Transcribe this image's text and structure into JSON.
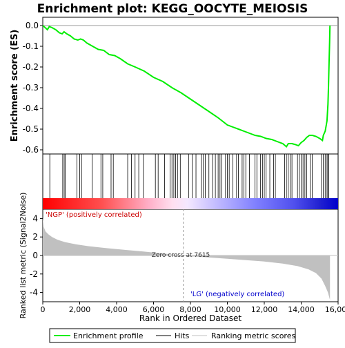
{
  "chart_data": {
    "type": "line",
    "title": "Enrichment plot: KEGG_OOCYTE_MEIOSIS",
    "colors": {
      "enrichment_line": "#00ee00",
      "hit_line": "#000000",
      "metric_fill": "#c0c0c0",
      "zero_line": "#000000",
      "positive_end": "#ff0000",
      "negative_end": "#0000ff"
    },
    "es_panel": {
      "ylabel": "Enrichment score (ES)",
      "ylim": [
        -0.62,
        0.04
      ],
      "yticks": [
        0.0,
        -0.1,
        -0.2,
        -0.3,
        -0.4,
        -0.5,
        -0.6
      ],
      "ytick_labels": [
        "0.0",
        "-0.1",
        "-0.2",
        "-0.3",
        "-0.4",
        "-0.5",
        "-0.6"
      ],
      "points": [
        [
          0,
          0.0
        ],
        [
          130,
          -0.01
        ],
        [
          250,
          -0.02
        ],
        [
          350,
          -0.005
        ],
        [
          500,
          -0.01
        ],
        [
          700,
          -0.02
        ],
        [
          900,
          -0.035
        ],
        [
          1050,
          -0.04
        ],
        [
          1150,
          -0.03
        ],
        [
          1300,
          -0.04
        ],
        [
          1500,
          -0.05
        ],
        [
          1700,
          -0.065
        ],
        [
          1900,
          -0.07
        ],
        [
          2050,
          -0.065
        ],
        [
          2200,
          -0.07
        ],
        [
          2400,
          -0.085
        ],
        [
          2700,
          -0.1
        ],
        [
          3000,
          -0.115
        ],
        [
          3300,
          -0.12
        ],
        [
          3600,
          -0.14
        ],
        [
          3900,
          -0.145
        ],
        [
          4200,
          -0.16
        ],
        [
          4600,
          -0.185
        ],
        [
          5000,
          -0.2
        ],
        [
          5500,
          -0.22
        ],
        [
          6000,
          -0.25
        ],
        [
          6500,
          -0.27
        ],
        [
          7000,
          -0.3
        ],
        [
          7500,
          -0.325
        ],
        [
          8000,
          -0.355
        ],
        [
          8500,
          -0.385
        ],
        [
          9000,
          -0.415
        ],
        [
          9500,
          -0.445
        ],
        [
          10000,
          -0.48
        ],
        [
          10300,
          -0.49
        ],
        [
          10600,
          -0.5
        ],
        [
          10900,
          -0.51
        ],
        [
          11200,
          -0.52
        ],
        [
          11500,
          -0.53
        ],
        [
          11800,
          -0.535
        ],
        [
          12100,
          -0.545
        ],
        [
          12400,
          -0.55
        ],
        [
          12700,
          -0.56
        ],
        [
          13000,
          -0.57
        ],
        [
          13200,
          -0.585
        ],
        [
          13300,
          -0.57
        ],
        [
          13500,
          -0.57
        ],
        [
          13700,
          -0.575
        ],
        [
          13850,
          -0.58
        ],
        [
          14000,
          -0.565
        ],
        [
          14150,
          -0.555
        ],
        [
          14300,
          -0.54
        ],
        [
          14450,
          -0.53
        ],
        [
          14600,
          -0.53
        ],
        [
          14800,
          -0.535
        ],
        [
          15000,
          -0.545
        ],
        [
          15150,
          -0.555
        ],
        [
          15200,
          -0.53
        ],
        [
          15300,
          -0.51
        ],
        [
          15400,
          -0.46
        ],
        [
          15450,
          -0.38
        ],
        [
          15480,
          -0.29
        ],
        [
          15510,
          -0.18
        ],
        [
          15540,
          -0.08
        ],
        [
          15560,
          0.0
        ]
      ]
    },
    "hits_panel": {
      "hit_positions": [
        380,
        1080,
        1160,
        1220,
        1850,
        2000,
        2100,
        2680,
        3150,
        3250,
        3700,
        3820,
        4600,
        4800,
        5000,
        5200,
        5450,
        6100,
        6250,
        6600,
        6900,
        7000,
        7100,
        7200,
        7300,
        7450,
        7900,
        8100,
        8300,
        8600,
        8700,
        8800,
        9000,
        9200,
        9350,
        9500,
        9600,
        9700,
        9900,
        10000,
        10100,
        10300,
        10500,
        10600,
        10800,
        10900,
        11000,
        11200,
        11500,
        11600,
        11800,
        11900,
        12000,
        12100,
        12300,
        12500,
        12600,
        13100,
        13200,
        13300,
        13400,
        13500,
        13800,
        13900,
        14000,
        14100,
        14200,
        14300,
        14500,
        14600,
        15100,
        15200,
        15300,
        15400,
        15450,
        15480
      ]
    },
    "metric_panel": {
      "ylabel": "Ranked list metric (Signal2Noise)",
      "ylim": [
        -5,
        5
      ],
      "yticks": [
        4,
        2,
        0,
        -2,
        -4
      ],
      "ytick_labels": [
        "4",
        "2",
        "0",
        "-2",
        "-4"
      ],
      "zero_cross_rank": 7615,
      "zero_cross_label": "Zero cross at 7615",
      "positive_label": "'NGP' (positively correlated)",
      "negative_label": "'LG' (negatively correlated)",
      "curve": [
        [
          0,
          4.1
        ],
        [
          50,
          3.1
        ],
        [
          150,
          2.6
        ],
        [
          300,
          2.3
        ],
        [
          500,
          2.0
        ],
        [
          800,
          1.7
        ],
        [
          1200,
          1.45
        ],
        [
          1800,
          1.2
        ],
        [
          2500,
          1.0
        ],
        [
          3500,
          0.78
        ],
        [
          4500,
          0.6
        ],
        [
          5500,
          0.42
        ],
        [
          6500,
          0.22
        ],
        [
          7200,
          0.08
        ],
        [
          7615,
          0.0
        ],
        [
          8000,
          -0.08
        ],
        [
          9000,
          -0.22
        ],
        [
          10000,
          -0.35
        ],
        [
          11000,
          -0.5
        ],
        [
          12000,
          -0.65
        ],
        [
          13000,
          -0.88
        ],
        [
          13800,
          -1.15
        ],
        [
          14400,
          -1.5
        ],
        [
          14800,
          -1.9
        ],
        [
          15100,
          -2.5
        ],
        [
          15300,
          -3.3
        ],
        [
          15450,
          -4.0
        ],
        [
          15560,
          -4.8
        ]
      ]
    },
    "x_axis": {
      "xlabel": "Rank in Ordered Dataset",
      "xlim": [
        0,
        16000
      ],
      "xticks": [
        0,
        2000,
        4000,
        6000,
        8000,
        10000,
        12000,
        14000,
        16000
      ],
      "xtick_labels": [
        "0",
        "2,000",
        "4,000",
        "6,000",
        "8,000",
        "10,000",
        "12,000",
        "14,000",
        "16,000"
      ],
      "total_genes": 15560
    },
    "legend": {
      "placement": "bottom",
      "items": [
        {
          "label": "Enrichment profile",
          "color": "#00ee00"
        },
        {
          "label": "Hits",
          "color": "#000000"
        },
        {
          "label": "Ranking metric scores",
          "color": "#c0c0c0"
        }
      ]
    }
  }
}
